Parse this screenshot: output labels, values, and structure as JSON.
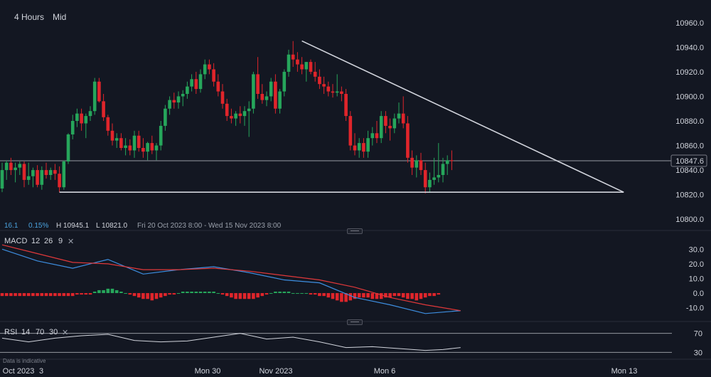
{
  "toolbar": {
    "timeframe": "4 Hours",
    "price_type": "Mid"
  },
  "info_bar": {
    "change": "16.1",
    "change_pct": "0.15%",
    "high": "H 10945.1",
    "low": "L 10821.0",
    "range": "Fri 20 Oct 2023 8:00 - Wed 15 Nov 2023 8:00"
  },
  "disclaimer": "Data is indicative",
  "colors": {
    "bg": "#131722",
    "up": "#26a65b",
    "down": "#e0252b",
    "macd": "#3d8ee0",
    "signal": "#e0383a",
    "rsi": "#d1d4dc",
    "trendline": "#d1d4dc"
  },
  "chart_data": [
    {
      "type": "candlestick",
      "y_axis": {
        "range": [
          10792,
          10968
        ],
        "ticks": [
          10800,
          10820,
          10840,
          10860,
          10880,
          10900,
          10920,
          10940,
          10960
        ],
        "tick_labels": [
          "10800.0",
          "10820.0",
          "10840.0",
          "10860.0",
          "10880.0",
          "10900.0",
          "10920.0",
          "10940.0",
          "10960.0"
        ]
      },
      "x_axis": {
        "tick_labels": [
          "Oct 2023",
          "3",
          "Mon 30",
          "Nov 2023",
          "Mon 6",
          "Mon 13"
        ]
      },
      "current_price": 10847.6,
      "current_price_label": "10847.6",
      "price_line": 10847.6,
      "support_level": 10822,
      "trendline": {
        "from": {
          "bar": 68,
          "price": 10945.1
        },
        "to": {
          "bar": 141,
          "price": 10822
        }
      },
      "support_line": {
        "from_bar": 13,
        "to_bar": 141,
        "price": 10822
      },
      "candles": [
        [
          10825,
          10846,
          10822,
          10840
        ],
        [
          10840,
          10848,
          10832,
          10846
        ],
        [
          10846,
          10850,
          10836,
          10840
        ],
        [
          10840,
          10846,
          10830,
          10842
        ],
        [
          10842,
          10847,
          10836,
          10845
        ],
        [
          10845,
          10847,
          10826,
          10832
        ],
        [
          10832,
          10846,
          10828,
          10835
        ],
        [
          10835,
          10842,
          10826,
          10840
        ],
        [
          10840,
          10844,
          10826,
          10828
        ],
        [
          10828,
          10843,
          10824,
          10840
        ],
        [
          10840,
          10846,
          10833,
          10836
        ],
        [
          10836,
          10842,
          10832,
          10840
        ],
        [
          10840,
          10845,
          10832,
          10837
        ],
        [
          10837,
          10843,
          10822,
          10826
        ],
        [
          10826,
          10848,
          10824,
          10847
        ],
        [
          10847,
          10870,
          10845,
          10869
        ],
        [
          10869,
          10885,
          10865,
          10880
        ],
        [
          10880,
          10890,
          10875,
          10886
        ],
        [
          10886,
          10890,
          10872,
          10878
        ],
        [
          10878,
          10886,
          10866,
          10884
        ],
        [
          10884,
          10892,
          10880,
          10888
        ],
        [
          10888,
          10915,
          10885,
          10912
        ],
        [
          10912,
          10915,
          10895,
          10896
        ],
        [
          10896,
          10902,
          10880,
          10883
        ],
        [
          10883,
          10885,
          10868,
          10872
        ],
        [
          10872,
          10878,
          10860,
          10864
        ],
        [
          10864,
          10870,
          10858,
          10866
        ],
        [
          10866,
          10870,
          10856,
          10858
        ],
        [
          10858,
          10866,
          10852,
          10860
        ],
        [
          10860,
          10865,
          10852,
          10856
        ],
        [
          10856,
          10872,
          10850,
          10868
        ],
        [
          10868,
          10872,
          10855,
          10858
        ],
        [
          10858,
          10866,
          10850,
          10855
        ],
        [
          10855,
          10863,
          10848,
          10862
        ],
        [
          10862,
          10868,
          10853,
          10856
        ],
        [
          10856,
          10862,
          10848,
          10860
        ],
        [
          10860,
          10880,
          10856,
          10876
        ],
        [
          10876,
          10893,
          10872,
          10890
        ],
        [
          10890,
          10900,
          10885,
          10897
        ],
        [
          10897,
          10903,
          10890,
          10895
        ],
        [
          10895,
          10904,
          10890,
          10900
        ],
        [
          10900,
          10905,
          10892,
          10902
        ],
        [
          10902,
          10912,
          10898,
          10908
        ],
        [
          10908,
          10918,
          10904,
          10914
        ],
        [
          10914,
          10920,
          10902,
          10906
        ],
        [
          10906,
          10922,
          10903,
          10918
        ],
        [
          10918,
          10930,
          10914,
          10926
        ],
        [
          10926,
          10930,
          10918,
          10922
        ],
        [
          10922,
          10927,
          10908,
          10912
        ],
        [
          10912,
          10918,
          10900,
          10904
        ],
        [
          10904,
          10910,
          10890,
          10894
        ],
        [
          10894,
          10898,
          10880,
          10884
        ],
        [
          10884,
          10890,
          10878,
          10882
        ],
        [
          10882,
          10888,
          10876,
          10886
        ],
        [
          10886,
          10892,
          10878,
          10884
        ],
        [
          10884,
          10892,
          10876,
          10888
        ],
        [
          10888,
          10896,
          10867,
          10890
        ],
        [
          10890,
          10920,
          10886,
          10918
        ],
        [
          10918,
          10932,
          10898,
          10902
        ],
        [
          10902,
          10910,
          10894,
          10897
        ],
        [
          10897,
          10904,
          10892,
          10900
        ],
        [
          10900,
          10915,
          10896,
          10912
        ],
        [
          10912,
          10918,
          10886,
          10890
        ],
        [
          10890,
          10906,
          10886,
          10904
        ],
        [
          10904,
          10922,
          10900,
          10920
        ],
        [
          10920,
          10938,
          10916,
          10934
        ],
        [
          10934,
          10945,
          10924,
          10930
        ],
        [
          10930,
          10936,
          10920,
          10926
        ],
        [
          10926,
          10932,
          10918,
          10922
        ],
        [
          10922,
          10928,
          10912,
          10928
        ],
        [
          10928,
          10930,
          10918,
          10920
        ],
        [
          10920,
          10928,
          10912,
          10916
        ],
        [
          10916,
          10922,
          10906,
          10910
        ],
        [
          10910,
          10916,
          10902,
          10908
        ],
        [
          10908,
          10912,
          10900,
          10904
        ],
        [
          10904,
          10910,
          10899,
          10903
        ],
        [
          10903,
          10918,
          10900,
          10904
        ],
        [
          10904,
          10908,
          10896,
          10902
        ],
        [
          10902,
          10906,
          10880,
          10884
        ],
        [
          10884,
          10888,
          10856,
          10860
        ],
        [
          10860,
          10870,
          10852,
          10856
        ],
        [
          10856,
          10866,
          10850,
          10862
        ],
        [
          10862,
          10866,
          10850,
          10855
        ],
        [
          10855,
          10872,
          10850,
          10866
        ],
        [
          10866,
          10875,
          10860,
          10870
        ],
        [
          10870,
          10880,
          10862,
          10866
        ],
        [
          10866,
          10888,
          10862,
          10884
        ],
        [
          10884,
          10888,
          10870,
          10876
        ],
        [
          10876,
          10882,
          10864,
          10874
        ],
        [
          10874,
          10886,
          10870,
          10882
        ],
        [
          10882,
          10895,
          10878,
          10886
        ],
        [
          10886,
          10900,
          10874,
          10878
        ],
        [
          10878,
          10884,
          10846,
          10850
        ],
        [
          10850,
          10856,
          10836,
          10842
        ],
        [
          10842,
          10852,
          10834,
          10848
        ],
        [
          10848,
          10854,
          10836,
          10840
        ],
        [
          10840,
          10846,
          10821,
          10826
        ],
        [
          10826,
          10838,
          10822,
          10832
        ],
        [
          10832,
          10850,
          10828,
          10834
        ],
        [
          10834,
          10862,
          10830,
          10836
        ],
        [
          10836,
          10850,
          10830,
          10845
        ],
        [
          10845,
          10852,
          10836,
          10848
        ],
        [
          10848,
          10856,
          10840,
          10847.6
        ]
      ]
    },
    {
      "type": "line",
      "name": "MACD",
      "label": "MACD",
      "params": [
        "12",
        "26",
        "9"
      ],
      "y_axis": {
        "range": [
          -17,
          36
        ],
        "ticks": [
          30,
          20,
          10,
          0,
          -10
        ],
        "tick_labels": [
          "30.0",
          "20.0",
          "10.0",
          "0.0",
          "-10.0"
        ]
      },
      "x": [
        0,
        8,
        16,
        24,
        32,
        40,
        48,
        56,
        64,
        72,
        80,
        88,
        96,
        104
      ],
      "series": [
        {
          "name": "MACD",
          "values": [
            30,
            22,
            17,
            23,
            13,
            16,
            18,
            14,
            9,
            7,
            -3,
            -8,
            -14,
            -12
          ]
        },
        {
          "name": "Signal",
          "values": [
            33,
            27,
            21,
            20,
            16,
            16,
            17,
            15,
            12,
            9,
            4,
            -3,
            -8,
            -12
          ]
        }
      ],
      "histogram": [
        -2,
        -2,
        -2,
        -2,
        -2,
        -2,
        -2,
        -2,
        -2,
        -2,
        -2,
        -2,
        -2,
        -2,
        -2,
        -2,
        -2,
        -1,
        -1,
        -1,
        -1,
        1,
        2,
        2,
        3,
        3,
        2,
        1,
        0,
        -1,
        -2,
        -3,
        -4,
        -4,
        -5,
        -4,
        -3,
        -2,
        -1,
        -1,
        0,
        1,
        1,
        1,
        1,
        1,
        1,
        1,
        1,
        0,
        -1,
        -2,
        -3,
        -4,
        -4,
        -4,
        -4,
        -4,
        -3,
        -2,
        -1,
        0,
        1,
        1,
        1,
        1,
        0,
        0,
        0,
        0,
        -1,
        -1,
        -2,
        -2,
        -3,
        -4,
        -5,
        -6,
        -6,
        -5,
        -4,
        -3,
        -3,
        -3,
        -4,
        -4,
        -4,
        -3,
        -3,
        -2,
        -2,
        -3,
        -4,
        -4,
        -5,
        -4,
        -3,
        -2,
        -2,
        -1
      ]
    },
    {
      "type": "line",
      "name": "RSI",
      "label": "RSI",
      "params": [
        "14",
        "70",
        "30"
      ],
      "y_axis": {
        "range": [
          20,
          80
        ],
        "ticks": [
          70,
          30
        ],
        "tick_labels": [
          "70",
          "30"
        ]
      },
      "levels": [
        70,
        30
      ],
      "x": [
        0,
        6,
        12,
        18,
        24,
        30,
        36,
        42,
        48,
        54,
        60,
        66,
        72,
        78,
        84,
        90,
        96,
        100,
        104
      ],
      "values": [
        60,
        52,
        60,
        65,
        68,
        55,
        52,
        54,
        62,
        70,
        58,
        62,
        52,
        40,
        42,
        38,
        34,
        36,
        40
      ]
    }
  ]
}
